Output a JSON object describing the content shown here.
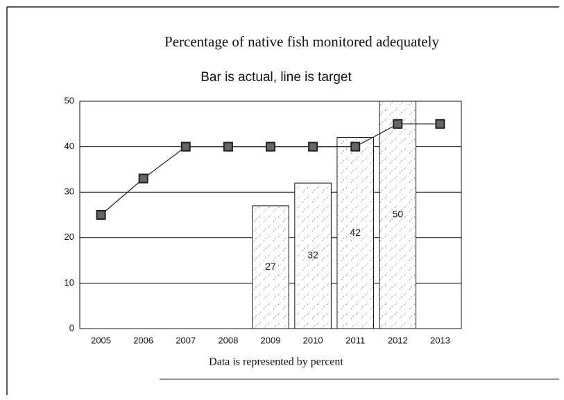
{
  "chart_data": {
    "type": "bar",
    "title": "Percentage of native fish monitored adequately",
    "subtitle": "Bar is actual, line is target",
    "footer": "Data is represented by percent",
    "categories": [
      "2005",
      "2006",
      "2007",
      "2008",
      "2009",
      "2010",
      "2011",
      "2012",
      "2013"
    ],
    "series": [
      {
        "type": "bar",
        "color": "#ffffff",
        "values": [
          null,
          null,
          null,
          null,
          27,
          32,
          42,
          50,
          null
        ]
      },
      {
        "type": "line",
        "color": "#222222",
        "values": [
          25,
          33,
          40,
          40,
          40,
          40,
          40,
          45,
          45
        ]
      }
    ],
    "ylim": [
      0,
      50
    ],
    "yticks": [
      0,
      10,
      20,
      30,
      40,
      50
    ],
    "grid": true
  }
}
